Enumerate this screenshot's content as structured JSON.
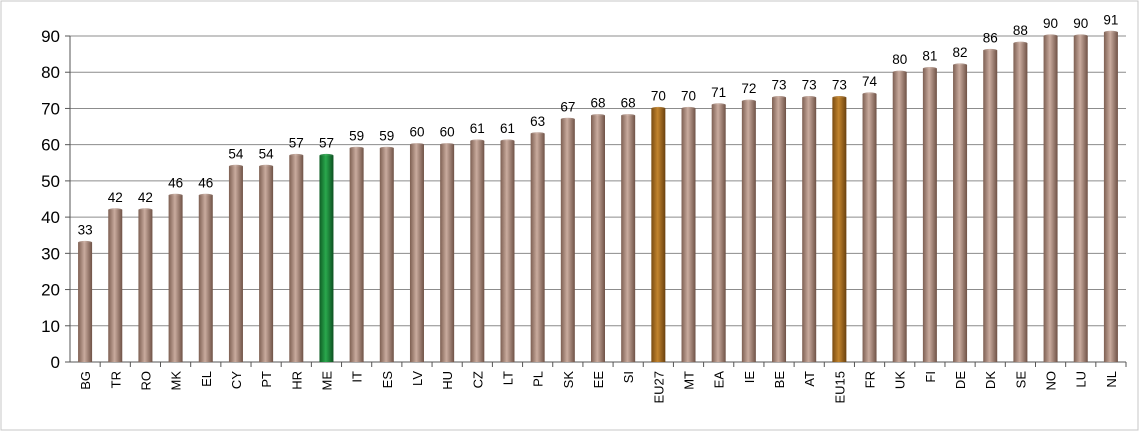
{
  "chart_data": {
    "type": "bar",
    "title": "",
    "xlabel": "",
    "ylabel": "",
    "ylim": [
      0,
      90
    ],
    "yticks": [
      0,
      10,
      20,
      30,
      40,
      50,
      60,
      70,
      80,
      90
    ],
    "grid": true,
    "legend": "none",
    "categories": [
      "BG",
      "TR",
      "RO",
      "MK",
      "EL",
      "CY",
      "PT",
      "HR",
      "ME",
      "IT",
      "ES",
      "LV",
      "HU",
      "CZ",
      "LT",
      "PL",
      "SK",
      "EE",
      "SI",
      "EU27",
      "MT",
      "EA",
      "IE",
      "BE",
      "AT",
      "EU15",
      "FR",
      "UK",
      "FI",
      "DE",
      "DK",
      "SE",
      "NO",
      "LU",
      "NL"
    ],
    "values": [
      33,
      42,
      42,
      46,
      46,
      54,
      54,
      57,
      57,
      59,
      59,
      60,
      60,
      61,
      61,
      63,
      67,
      68,
      68,
      70,
      70,
      71,
      72,
      73,
      73,
      73,
      74,
      80,
      81,
      82,
      86,
      88,
      90,
      90,
      91
    ],
    "bar_colors": {
      "default": "#a8877a",
      "highlight": "#1e8a3c",
      "aggregate": "#a36a1f"
    },
    "highlight_categories": [
      "ME"
    ],
    "aggregate_categories": [
      "EU27",
      "EU15"
    ]
  }
}
